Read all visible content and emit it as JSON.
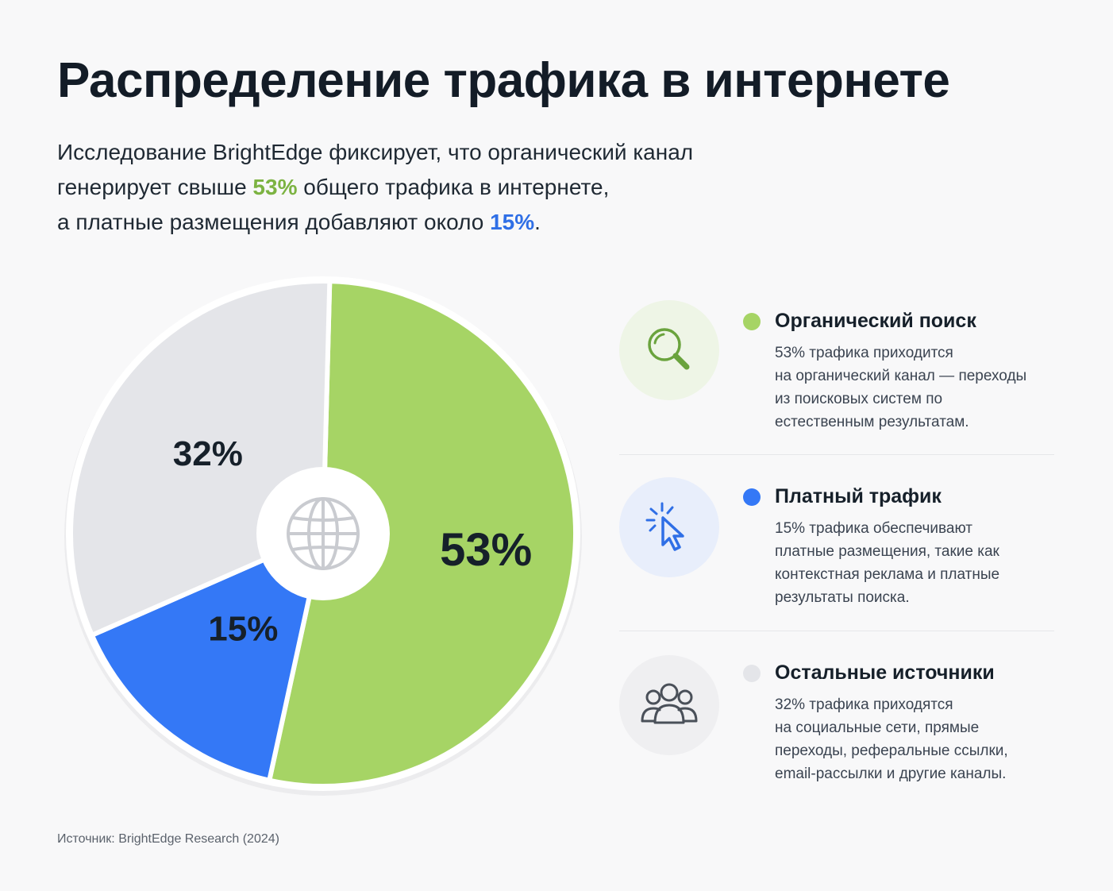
{
  "header": {
    "title": "Распределение трафика в интернете",
    "subtitle_line1": "Исследование BrightEdge фиксирует, что органический канал",
    "subtitle_line2_a": "генерирует свыше ",
    "subtitle_line2_hl": "53%",
    "subtitle_line2_b": " общего трафика в интернете,",
    "subtitle_line3_a": "а платные размещения добавляют около ",
    "subtitle_line3_hl": "15%",
    "subtitle_line3_b": "."
  },
  "chart_data": {
    "type": "pie",
    "categories": [
      "Органический поиск",
      "Платный трафик",
      "Остальные источники"
    ],
    "values": [
      53,
      15,
      32
    ],
    "labels": [
      "53%",
      "15%",
      "32%"
    ],
    "colors": [
      "#a6d465",
      "#3478f6",
      "#e4e5e9"
    ],
    "center_icon": "globe-icon"
  },
  "legend": [
    {
      "title": "Органический поиск",
      "description": "53% трафика приходится на органический канал — переходы из поисковых систем по естественным результатам.",
      "desc_lines": [
        "53% трафика приходится",
        "на органический канал — переходы",
        "из поисковых систем по",
        "естественным результатам."
      ],
      "icon": "search-icon",
      "dot_color": "#a6d465",
      "icon_bg": "#eef5e6",
      "icon_color": "#6aa33d"
    },
    {
      "title": "Платный трафик",
      "description": "15% трафика обеспечивают платные размещения, такие как контекстная реклама и платные результаты поиска.",
      "desc_lines": [
        "15% трафика обеспечивают",
        "платные размещения, такие как",
        "контекстная реклама и платные",
        "результаты поиска."
      ],
      "icon": "cursor-click-icon",
      "dot_color": "#3478f6",
      "icon_bg": "#e8eefb",
      "icon_color": "#2f6fe6"
    },
    {
      "title": "Остальные источники",
      "description": "32% трафика приходятся на социальные сети, прямые переходы, реферальные ссылки, email-рассылки и другие каналы.",
      "desc_lines": [
        "32% трафика приходятся",
        "на социальные сети, прямые",
        "переходы, реферальные ссылки,",
        "email-рассылки и другие каналы."
      ],
      "icon": "users-icon",
      "dot_color": "#e4e5e9",
      "icon_bg": "#efeff1",
      "icon_color": "#4a5059"
    }
  ],
  "footer": {
    "source": "Источник: BrightEdge Research (2024)"
  }
}
